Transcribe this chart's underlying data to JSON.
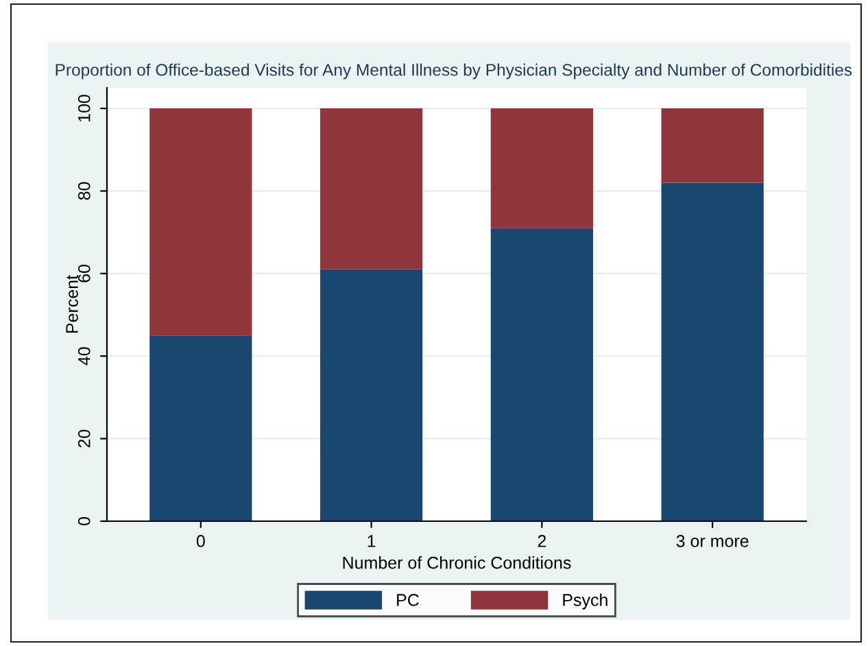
{
  "chart_data": {
    "type": "bar",
    "title": "Proportion of Office-based Visits for Any Mental Illness by Physician Specialty and Number of Comorbidities",
    "xlabel": "Number of Chronic Conditions",
    "ylabel": "Percent",
    "categories": [
      "0",
      "1",
      "2",
      "3 or more"
    ],
    "stacked": true,
    "series": [
      {
        "name": "PC",
        "color": "#1a476f",
        "values": [
          45,
          61,
          71,
          82
        ]
      },
      {
        "name": "Psych",
        "color": "#90353b",
        "values": [
          55,
          39,
          29,
          18
        ]
      }
    ],
    "ylim": [
      0,
      105
    ],
    "yticks": [
      0,
      20,
      40,
      60,
      80,
      100
    ],
    "grid": "y",
    "legend": "bottom"
  }
}
